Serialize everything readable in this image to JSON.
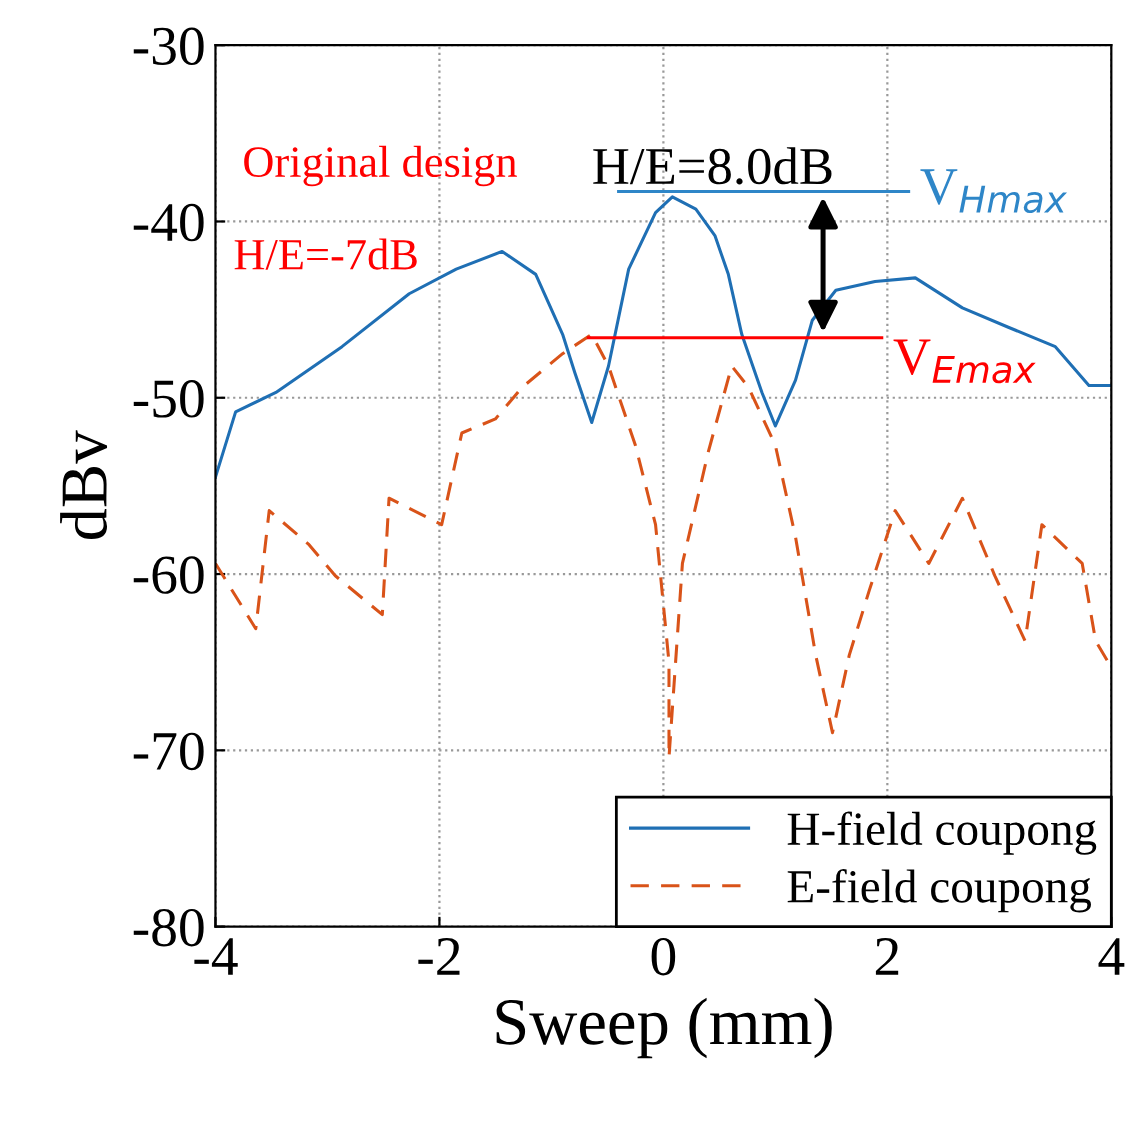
{
  "chart_data": {
    "type": "line",
    "xlabel": "Sweep (mm)",
    "ylabel": "dBv",
    "xlim": [
      -4,
      4
    ],
    "xticks": [
      -4,
      -2,
      0,
      2,
      4
    ],
    "ylim": [
      -80,
      -30
    ],
    "yticks": [
      -80,
      -70,
      -60,
      -50,
      -40,
      -30
    ],
    "grid": true,
    "legend": "bottom right",
    "series": [
      {
        "name": "H-field coupong",
        "color": "#1f6fb4",
        "line_style": "solid",
        "x": [
          -4,
          -3.82,
          -3.46,
          -2.87,
          -2.27,
          -1.85,
          -1.44,
          -1.14,
          -0.9,
          -0.79,
          -0.64,
          -0.49,
          -0.31,
          -0.07,
          0.08,
          0.29,
          0.46,
          0.58,
          0.7,
          0.88,
          1.0,
          1.18,
          1.33,
          1.54,
          1.89,
          2.25,
          2.67,
          3.08,
          3.5,
          3.8,
          4
        ],
        "values": [
          -54.5,
          -50.8,
          -49.7,
          -47.1,
          -44.1,
          -42.7,
          -41.7,
          -43,
          -46.4,
          -48.6,
          -51.4,
          -48.2,
          -42.7,
          -39.5,
          -38.6,
          -39.3,
          -40.8,
          -43,
          -46.4,
          -49.7,
          -51.6,
          -49,
          -45.6,
          -43.9,
          -43.4,
          -43.2,
          -44.9,
          -46,
          -47.1,
          -49.3,
          -49.3
        ]
      },
      {
        "name": "E-field coupong",
        "color": "#d95319",
        "line_style": "dashed",
        "x": [
          -4,
          -3.64,
          -3.52,
          -3.17,
          -2.93,
          -2.51,
          -2.45,
          -1.98,
          -1.8,
          -1.5,
          -1.26,
          -0.9,
          -0.64,
          -0.49,
          -0.25,
          -0.07,
          0.05,
          0.05,
          0.17,
          0.4,
          0.61,
          0.76,
          1.0,
          1.18,
          1.36,
          1.51,
          1.66,
          1.84,
          2.07,
          2.37,
          2.67,
          2.96,
          3.23,
          3.38,
          3.74,
          3.86,
          4
        ],
        "values": [
          -59.4,
          -63.1,
          -56.4,
          -58.3,
          -60.1,
          -62.3,
          -55.7,
          -57.2,
          -52,
          -51.2,
          -49.4,
          -47.5,
          -46.4,
          -48.2,
          -52.7,
          -57.2,
          -65,
          -70.4,
          -59.4,
          -53.1,
          -48.2,
          -49.4,
          -52.7,
          -57.9,
          -64.6,
          -69,
          -64.6,
          -60.9,
          -56.4,
          -59.4,
          -55.7,
          -60.1,
          -63.8,
          -57.2,
          -59.4,
          -63.8,
          -65.3
        ]
      },
      {
        "name": "V$_{Hmax}$",
        "color": "#2e86c8",
        "line_style": "solid",
        "x": [
          -0.4,
          2.19
        ],
        "values": [
          -38.3,
          -38.3
        ]
      },
      {
        "name": "V$_{Emax}$",
        "color": "#ff0000",
        "line_style": "solid",
        "x": [
          -0.67,
          1.95
        ],
        "values": [
          -46.6,
          -46.6
        ]
      }
    ],
    "annotations": [
      "Original design",
      "H/E=8.0dB",
      "H/E=-7dB"
    ]
  }
}
